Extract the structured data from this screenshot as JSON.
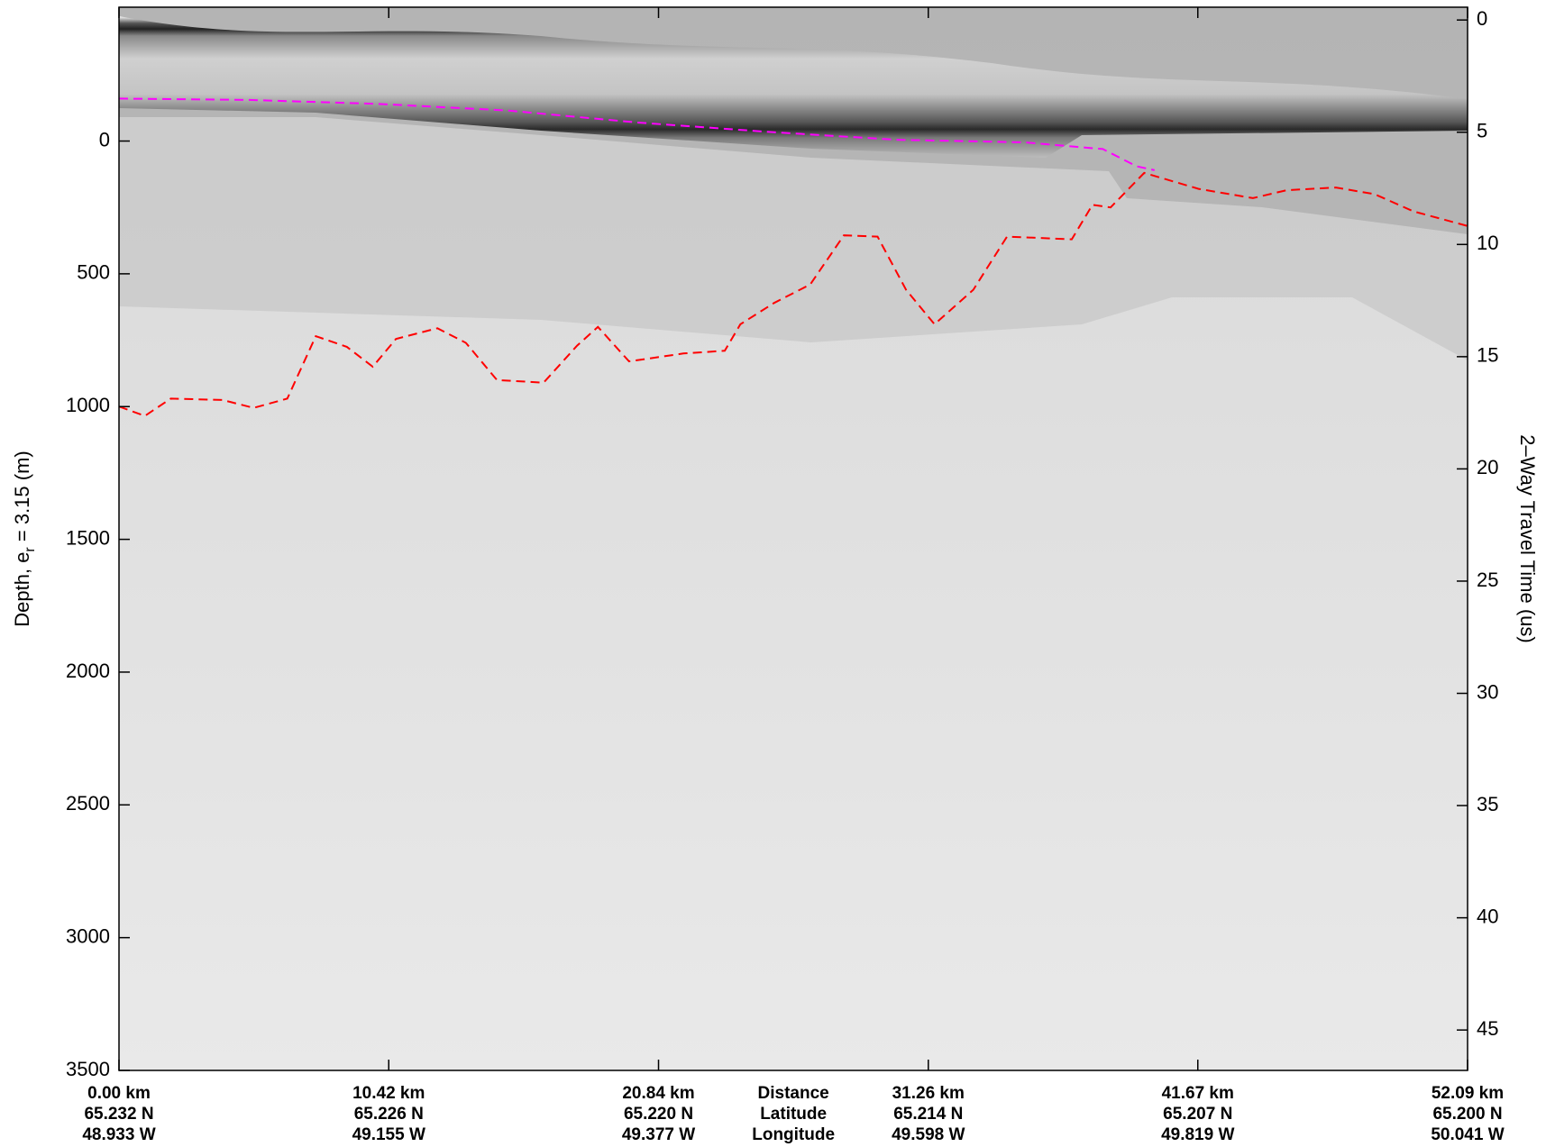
{
  "chart_data": {
    "type": "line",
    "y_label": {
      "prefix": "Depth, e",
      "sub": "r",
      "suffix": " = 3.15 (m)"
    },
    "y2_label": "2–Way Travel Time (us)",
    "x_row_labels": [
      "Distance",
      "Latitude",
      "Longitude"
    ],
    "xlim": [
      0,
      52.09
    ],
    "xticks": [
      {
        "value": 0,
        "label": "0.00 km"
      },
      {
        "value": 10.42,
        "label": "10.42 km"
      },
      {
        "value": 20.84,
        "label": "20.84 km"
      },
      {
        "value": 31.26,
        "label": "31.26 km"
      },
      {
        "value": 41.67,
        "label": "41.67 km"
      },
      {
        "value": 52.09,
        "label": "52.09 km"
      }
    ],
    "latitude_labels": [
      "65.232 N",
      "65.226 N",
      "65.220 N",
      "65.214 N",
      "65.207 N",
      "65.200 N"
    ],
    "longitude_labels": [
      "48.933 W",
      "49.155 W",
      "49.377 W",
      "49.598 W",
      "49.819 W",
      "50.041 W"
    ],
    "ylim": [
      3500,
      -504
    ],
    "yticks": [
      0,
      500,
      1000,
      1500,
      2000,
      2500,
      3000,
      3500
    ],
    "y2lim": [
      46.8,
      -0.57
    ],
    "y2ticks": [
      0,
      5,
      10,
      15,
      20,
      25,
      30,
      35,
      40,
      45
    ],
    "series": [
      {
        "color": "#ff0000",
        "dashed": true,
        "x": [
          0,
          1,
          2,
          4,
          5.2,
          6.5,
          7.6,
          8.8,
          9.8,
          10.7,
          12.3,
          13.4,
          14.6,
          16.4,
          17.7,
          18.5,
          19.7,
          21.8,
          23.4,
          24,
          25.3,
          26.7,
          28,
          29.3,
          30.4,
          31.5,
          33,
          34.3,
          36.8,
          37.6,
          38.3,
          39.6,
          41.7,
          43.8,
          45.1,
          47,
          48.5,
          50,
          52.09
        ],
        "values": [
          1000,
          1035,
          970,
          975,
          1005,
          970,
          735,
          775,
          850,
          745,
          705,
          760,
          900,
          910,
          770,
          700,
          830,
          800,
          790,
          690,
          610,
          540,
          355,
          360,
          560,
          690,
          560,
          360,
          370,
          240,
          250,
          120,
          180,
          215,
          185,
          175,
          200,
          265,
          320
        ]
      },
      {
        "color": "#ff00ff",
        "dashed": true,
        "x": [
          0,
          5,
          10,
          15,
          20,
          25,
          30,
          35,
          38,
          39.3,
          40
        ],
        "values": [
          -160,
          -155,
          -140,
          -115,
          -70,
          -35,
          -5,
          5,
          30,
          95,
          110
        ]
      }
    ]
  }
}
